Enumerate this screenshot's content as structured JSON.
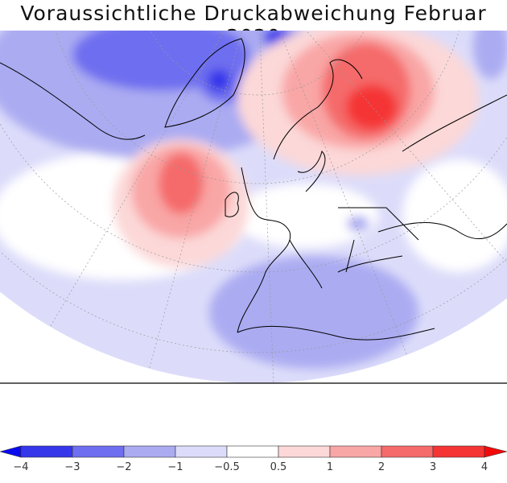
{
  "title": "Voraussichtliche Druckabweichung Februar 2020",
  "colorbar": {
    "labels": [
      "−4",
      "−3",
      "−2",
      "−1",
      "−0.5",
      "0.5",
      "1",
      "2",
      "3",
      "4"
    ],
    "colors": [
      "#0a0af0",
      "#3636ea",
      "#6e6ef0",
      "#ababf2",
      "#dcdcfa",
      "#ffffff",
      "#fcd8d8",
      "#f9a6a6",
      "#f56a6a",
      "#f53434",
      "#f20a0a"
    ]
  },
  "colors": {
    "blue_dark": "#3636ea",
    "blue_mid": "#6e6ef0",
    "blue_light": "#ababf2",
    "blue_faint": "#dcdcfa",
    "red_faint": "#fcd8d8",
    "red_light": "#f9a6a6",
    "red_mid": "#f56a6a",
    "red_dark": "#f53434"
  }
}
